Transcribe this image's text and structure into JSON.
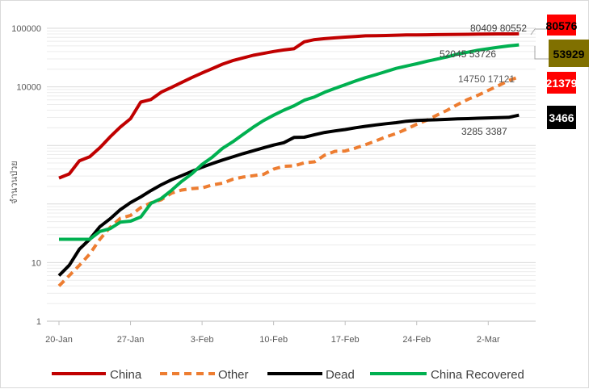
{
  "chart_data": {
    "type": "line",
    "title": "",
    "xlabel": "",
    "ylabel": "จำนวนป่วย",
    "yscale": "log",
    "ylim": [
      1,
      100000
    ],
    "y_ticks": [
      "1",
      "10",
      "10000",
      "100000"
    ],
    "x_ticks": [
      "20-Jan",
      "27-Jan",
      "3-Feb",
      "10-Feb",
      "17-Feb",
      "24-Feb",
      "2-Mar"
    ],
    "x": [
      "20-Jan",
      "21-Jan",
      "22-Jan",
      "23-Jan",
      "24-Jan",
      "25-Jan",
      "26-Jan",
      "27-Jan",
      "28-Jan",
      "29-Jan",
      "30-Jan",
      "31-Jan",
      "1-Feb",
      "2-Feb",
      "3-Feb",
      "4-Feb",
      "5-Feb",
      "6-Feb",
      "7-Feb",
      "8-Feb",
      "9-Feb",
      "10-Feb",
      "11-Feb",
      "12-Feb",
      "13-Feb",
      "14-Feb",
      "15-Feb",
      "16-Feb",
      "17-Feb",
      "18-Feb",
      "19-Feb",
      "20-Feb",
      "21-Feb",
      "22-Feb",
      "23-Feb",
      "24-Feb",
      "25-Feb",
      "26-Feb",
      "27-Feb",
      "28-Feb",
      "29-Feb",
      "1-Mar",
      "2-Mar",
      "3-Mar",
      "4-Mar",
      "5-Mar"
    ],
    "grid": "horizontal",
    "legend_position": "bottom",
    "series": [
      {
        "name": "China",
        "color": "#c00000",
        "dash": "solid",
        "values": [
          278,
          326,
          547,
          639,
          916,
          1399,
          2062,
          2863,
          5494,
          6070,
          8124,
          9783,
          11871,
          14411,
          17238,
          20471,
          24363,
          28060,
          31161,
          34546,
          37198,
          40171,
          42638,
          44653,
          58761,
          63851,
          66492,
          68500,
          70548,
          72436,
          74185,
          74576,
          75077,
          76119,
          76793,
          77022,
          77241,
          77754,
          78166,
          78600,
          78824,
          79251,
          79824,
          80026,
          80151,
          80409
        ]
      },
      {
        "name": "Other",
        "color": "#ed7d31",
        "dash": "dashed",
        "values": [
          4,
          6,
          9,
          14,
          25,
          40,
          57,
          64,
          87,
          105,
          118,
          153,
          173,
          183,
          188,
          212,
          227,
          265,
          288,
          304,
          320,
          395,
          441,
          447,
          505,
          526,
          683,
          794,
          804,
          900,
          1030,
          1200,
          1400,
          1600,
          1900,
          2300,
          2700,
          3300,
          4000,
          5000,
          6100,
          7200,
          8700,
          10500,
          12800,
          14750
        ]
      },
      {
        "name": "Dead",
        "color": "#000000",
        "dash": "solid",
        "values": [
          6,
          9,
          17,
          25,
          41,
          56,
          80,
          106,
          132,
          170,
          213,
          259,
          304,
          361,
          425,
          491,
          564,
          637,
          723,
          812,
          909,
          1017,
          1114,
          1368,
          1381,
          1524,
          1666,
          1770,
          1868,
          2004,
          2118,
          2236,
          2345,
          2442,
          2592,
          2663,
          2715,
          2744,
          2788,
          2835,
          2870,
          2912,
          2946,
          2984,
          3015,
          3285
        ]
      },
      {
        "name": "China Recovered",
        "color": "#00b050",
        "dash": "solid",
        "values": [
          25,
          25,
          25,
          25,
          34,
          38,
          49,
          51,
          60,
          103,
          124,
          171,
          243,
          328,
          475,
          632,
          892,
          1152,
          1540,
          2050,
          2649,
          3281,
          3996,
          4740,
          5911,
          6723,
          8096,
          9419,
          10844,
          12552,
          14376,
          16155,
          18264,
          20659,
          22688,
          24734,
          27323,
          29745,
          32495,
          36117,
          39002,
          42162,
          44854,
          47450,
          50001,
          52045
        ]
      }
    ],
    "annotations": {
      "china_labels": "80409 80552",
      "recovered_labels": "52045 53726",
      "other_labels": "14750 17121",
      "dead_labels": "3285 3387"
    },
    "badges": {
      "china": {
        "text": "80576",
        "bg": "#ff0000",
        "color": "#000000"
      },
      "recovered": {
        "text": "53929",
        "bg": "#807000",
        "color": "#000000"
      },
      "other": {
        "text": "21379",
        "bg": "#ff0000",
        "color": "#ffffff"
      },
      "dead": {
        "text": "3466",
        "bg": "#000000",
        "color": "#ffffff"
      }
    }
  }
}
